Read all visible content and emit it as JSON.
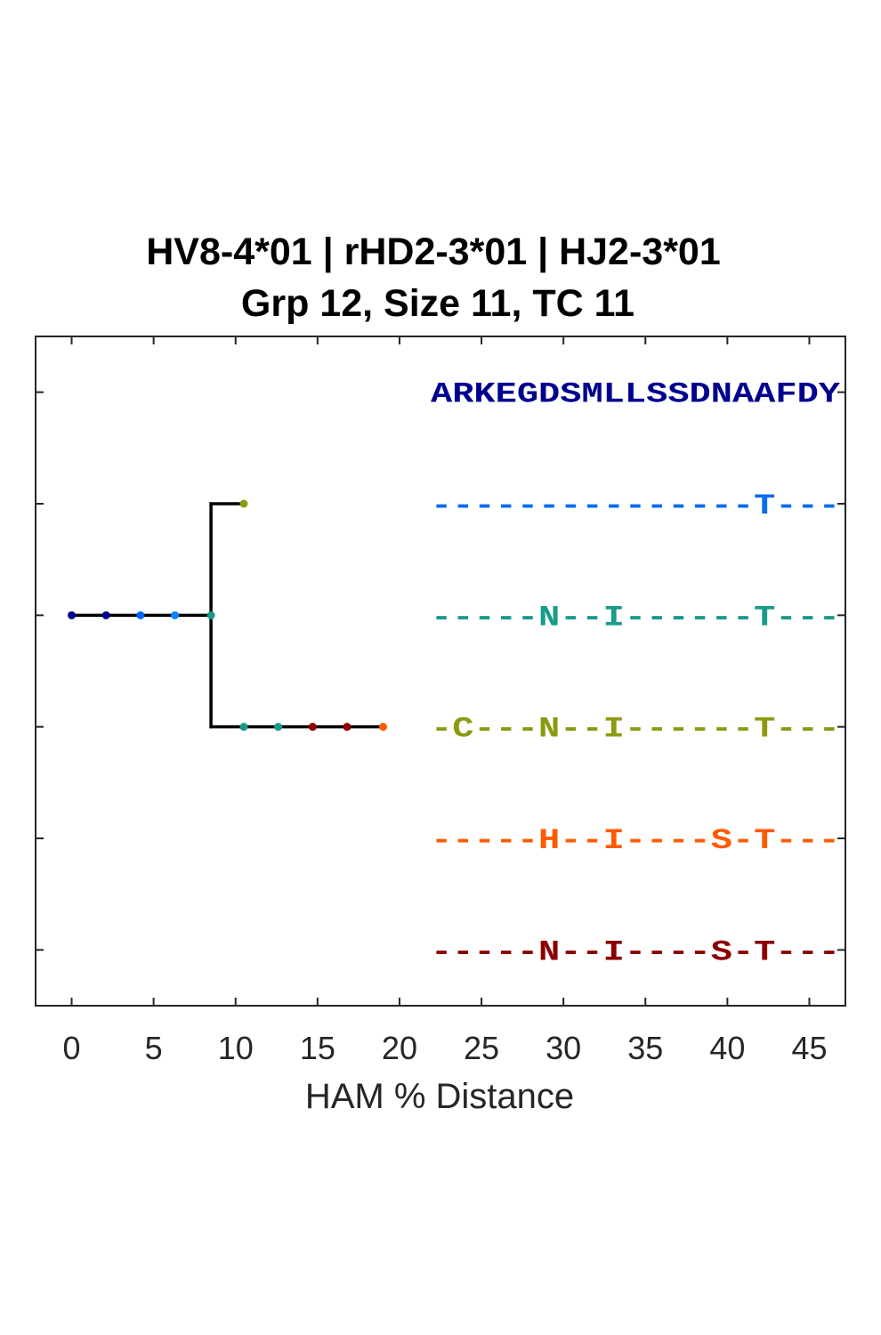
{
  "chart_data": {
    "type": "dendrogram",
    "title_lines": [
      "HV8-4*01 | rHD2-3*01 | HJ2-3*01",
      "Grp 12, Size 11, TC 11"
    ],
    "xlabel": "HAM % Distance",
    "xlim": [
      -2.2,
      47.2
    ],
    "ylim": [
      0.5,
      6.5
    ],
    "xticks": [
      0,
      5,
      10,
      15,
      20,
      25,
      30,
      35,
      40,
      45
    ],
    "xtick_labels": [
      "0",
      "5",
      "10",
      "15",
      "20",
      "25",
      "30",
      "35",
      "40",
      "45"
    ],
    "yticks": [
      1,
      2,
      3,
      4,
      5,
      6
    ],
    "grid": false,
    "tree": {
      "segments": [
        {
          "x1": 0,
          "y1": 4,
          "x2": 8.5,
          "y2": 4
        },
        {
          "x1": 8.5,
          "y1": 3,
          "x2": 8.5,
          "y2": 5
        },
        {
          "x1": 8.5,
          "y1": 5,
          "x2": 10.5,
          "y2": 5
        },
        {
          "x1": 8.5,
          "y1": 3,
          "x2": 19,
          "y2": 3
        }
      ],
      "nodes": [
        {
          "x": 0,
          "y": 4,
          "color": "#00008f"
        },
        {
          "x": 2.1,
          "y": 4,
          "color": "#00008f"
        },
        {
          "x": 4.2,
          "y": 4,
          "color": "#0066ff"
        },
        {
          "x": 6.3,
          "y": 4,
          "color": "#0a84ff"
        },
        {
          "x": 8.5,
          "y": 4,
          "color": "#1a9a8a"
        },
        {
          "x": 10.5,
          "y": 5,
          "color": "#8c9a10"
        },
        {
          "x": 10.5,
          "y": 3,
          "color": "#1a9a8a"
        },
        {
          "x": 12.6,
          "y": 3,
          "color": "#1a9a8a"
        },
        {
          "x": 14.7,
          "y": 3,
          "color": "#8b0000"
        },
        {
          "x": 16.8,
          "y": 3,
          "color": "#8b0000"
        },
        {
          "x": 19,
          "y": 3,
          "color": "#ff5a00"
        }
      ]
    },
    "sequences": [
      {
        "text": "ARKEGDSMLLSSDNAAFDY",
        "color": "#00008f",
        "y": 6
      },
      {
        "text": "---------------T---",
        "color": "#0a6cf0",
        "y": 5
      },
      {
        "text": "-----N--I------T---",
        "color": "#1a9a8a",
        "y": 4
      },
      {
        "text": "-C---N--I------T---",
        "color": "#8c9a10",
        "y": 3
      },
      {
        "text": "-----H--I----S-T---",
        "color": "#ff5a00",
        "y": 2
      },
      {
        "text": "-----N--I----S-T---",
        "color": "#8b0000",
        "y": 1
      }
    ]
  }
}
